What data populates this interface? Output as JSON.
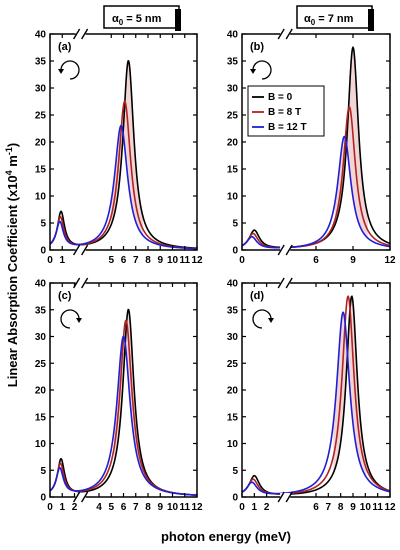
{
  "figure": {
    "ylabel": "Linear Absorption Coefficient (x10",
    "ylabel_sup": "4",
    "ylabel_unit": " m",
    "ylabel_unit_sup": "-1",
    "ylabel_close": ")",
    "xlabel": "photon energy (meV)",
    "header_left": "α",
    "header_left_sub": "0",
    "header_left_rest": " = 5 nm",
    "header_right": "α",
    "header_right_sub": "0",
    "header_right_rest": " = 7 nm",
    "legend": [
      "B = 0",
      "B = 8 T",
      "B = 12 T"
    ],
    "colors": {
      "B0": "#000000",
      "B8": "#b22222",
      "B12": "#1f1fd6",
      "fill": "#e8b4b4"
    }
  },
  "chart_data": [
    {
      "panel": "(a)",
      "type": "line",
      "rotation": "clockwise",
      "xlim": [
        0,
        12
      ],
      "ylim": [
        0,
        40
      ],
      "axis_break": [
        1.5,
        3.5
      ],
      "xticks": [
        0,
        1,
        5,
        6,
        7,
        8,
        9,
        10,
        11,
        12
      ],
      "yticks": [
        0,
        5,
        10,
        15,
        20,
        25,
        30,
        35,
        40
      ],
      "series": [
        {
          "name": "B = 0",
          "low": {
            "x": 0.9,
            "y": 6.8,
            "w": 0.35
          },
          "main": {
            "x": 6.4,
            "y": 35.0,
            "w": 0.55
          }
        },
        {
          "name": "B = 8 T",
          "low": {
            "x": 0.85,
            "y": 5.8,
            "w": 0.35
          },
          "main": {
            "x": 6.1,
            "y": 27.5,
            "w": 0.6
          }
        },
        {
          "name": "B = 12 T",
          "low": {
            "x": 0.8,
            "y": 4.9,
            "w": 0.35
          },
          "main": {
            "x": 5.8,
            "y": 23.0,
            "w": 0.65
          }
        }
      ]
    },
    {
      "panel": "(b)",
      "type": "line",
      "rotation": "clockwise",
      "xlim": [
        0,
        12
      ],
      "ylim": [
        0,
        40
      ],
      "axis_break": [
        2.5,
        4.5
      ],
      "xticks": [
        0,
        6,
        9,
        12
      ],
      "yticks": [
        0,
        5,
        10,
        15,
        20,
        25,
        30,
        35,
        40
      ],
      "series": [
        {
          "name": "B = 0",
          "low": {
            "x": 1.0,
            "y": 3.5,
            "w": 0.5
          },
          "main": {
            "x": 9.0,
            "y": 37.5,
            "w": 0.55
          }
        },
        {
          "name": "B = 8 T",
          "low": {
            "x": 0.9,
            "y": 2.9,
            "w": 0.5
          },
          "main": {
            "x": 8.7,
            "y": 26.5,
            "w": 0.6
          }
        },
        {
          "name": "B = 12 T",
          "low": {
            "x": 0.8,
            "y": 2.3,
            "w": 0.5
          },
          "main": {
            "x": 8.3,
            "y": 21.0,
            "w": 0.65
          }
        }
      ]
    },
    {
      "panel": "(c)",
      "type": "line",
      "rotation": "counterclockwise",
      "xlim": [
        0,
        12
      ],
      "ylim": [
        0,
        40
      ],
      "axis_break": [
        1.5,
        3.5
      ],
      "xticks": [
        0,
        1,
        2,
        4,
        5,
        6,
        7,
        8,
        9,
        10,
        11,
        12
      ],
      "yticks": [
        0,
        5,
        10,
        15,
        20,
        25,
        30,
        35,
        40
      ],
      "series": [
        {
          "name": "B = 0",
          "low": {
            "x": 0.9,
            "y": 6.8,
            "w": 0.35
          },
          "main": {
            "x": 6.4,
            "y": 35.0,
            "w": 0.55
          }
        },
        {
          "name": "B = 8 T",
          "low": {
            "x": 0.85,
            "y": 5.9,
            "w": 0.35
          },
          "main": {
            "x": 6.2,
            "y": 33.0,
            "w": 0.6
          }
        },
        {
          "name": "B = 12 T",
          "low": {
            "x": 0.8,
            "y": 5.0,
            "w": 0.35
          },
          "main": {
            "x": 6.0,
            "y": 30.0,
            "w": 0.65
          }
        }
      ]
    },
    {
      "panel": "(d)",
      "type": "line",
      "rotation": "counterclockwise",
      "xlim": [
        0,
        12
      ],
      "ylim": [
        0,
        40
      ],
      "axis_break": [
        2.5,
        4.5
      ],
      "xticks": [
        0,
        1,
        2,
        6,
        7,
        8,
        9,
        10,
        11,
        12
      ],
      "yticks": [
        0,
        5,
        10,
        15,
        20,
        25,
        30,
        35,
        40
      ],
      "series": [
        {
          "name": "B = 0",
          "low": {
            "x": 1.0,
            "y": 3.8,
            "w": 0.5
          },
          "main": {
            "x": 8.9,
            "y": 37.5,
            "w": 0.55
          }
        },
        {
          "name": "B = 8 T",
          "low": {
            "x": 0.9,
            "y": 3.1,
            "w": 0.5
          },
          "main": {
            "x": 8.6,
            "y": 37.5,
            "w": 0.6
          }
        },
        {
          "name": "B = 12 T",
          "low": {
            "x": 0.8,
            "y": 2.5,
            "w": 0.5
          },
          "main": {
            "x": 8.2,
            "y": 34.5,
            "w": 0.65
          }
        }
      ]
    }
  ]
}
